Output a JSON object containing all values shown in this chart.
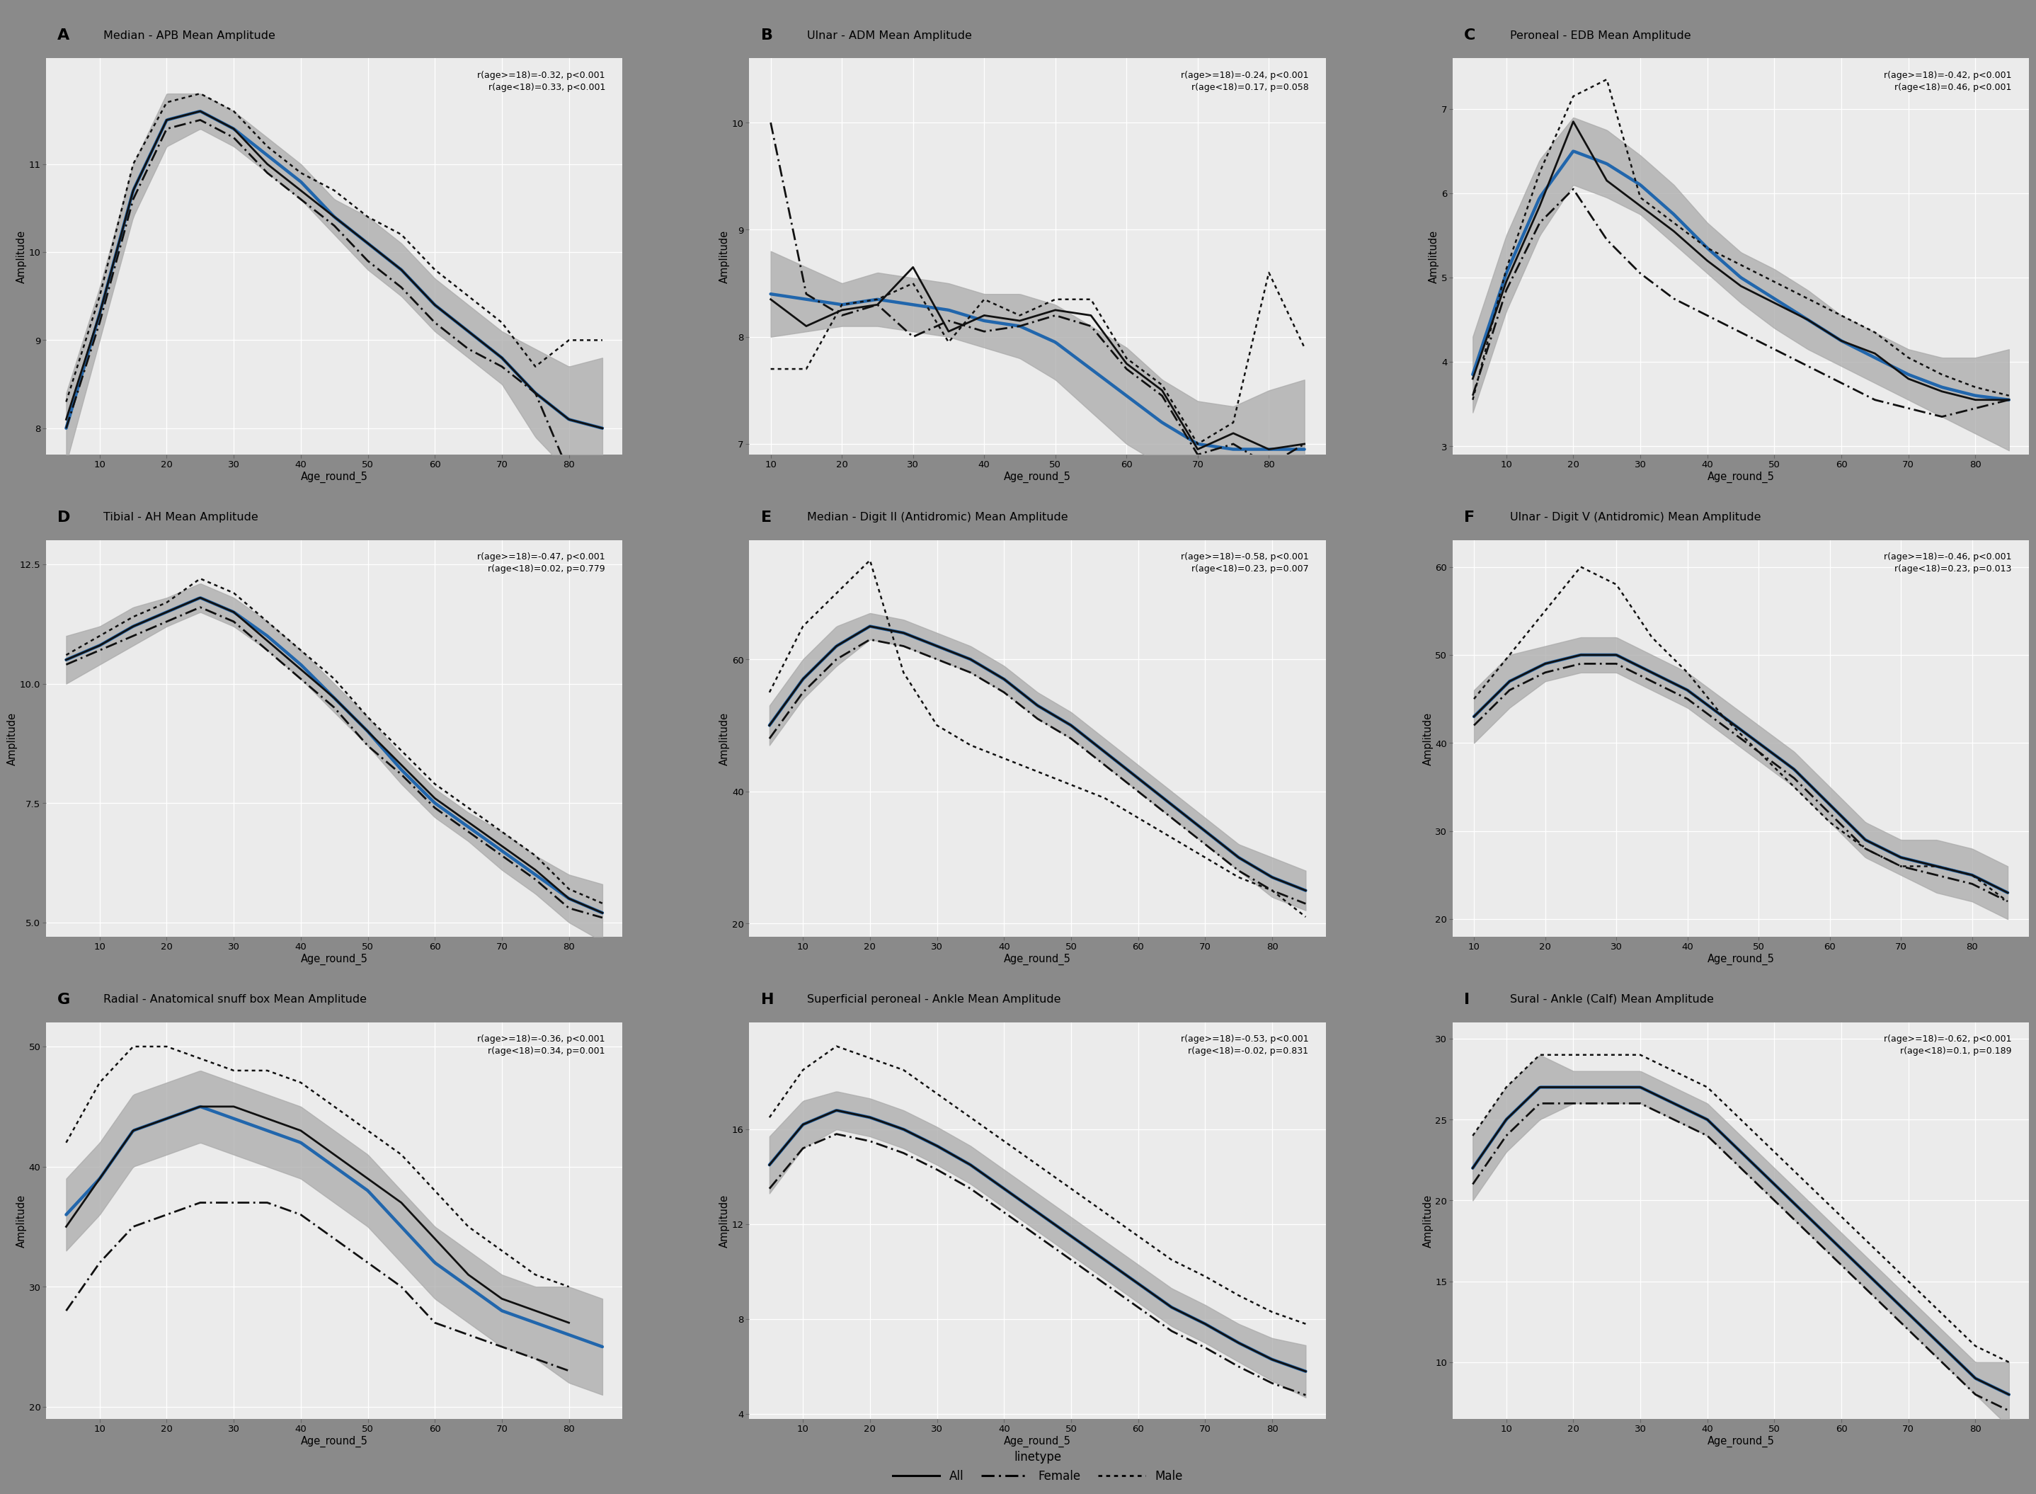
{
  "panels": [
    {
      "label": "A",
      "title": "Median - APB Mean Amplitude",
      "corr_text": "r(age>=18)=-0.32, p<0.001\nr(age<18)=0.33, p<0.001",
      "ages": [
        5,
        10,
        15,
        20,
        25,
        30,
        35,
        40,
        45,
        50,
        55,
        60,
        65,
        70,
        75,
        80,
        85
      ],
      "all_mean": [
        8.1,
        9.3,
        10.7,
        11.5,
        11.6,
        11.4,
        11.0,
        10.7,
        10.4,
        10.1,
        9.8,
        9.4,
        9.1,
        8.8,
        8.4,
        8.1,
        8.0
      ],
      "female_mean": [
        8.0,
        9.2,
        10.6,
        11.4,
        11.5,
        11.3,
        10.9,
        10.6,
        10.3,
        9.9,
        9.6,
        9.2,
        8.9,
        8.7,
        8.4,
        7.5,
        null
      ],
      "male_mean": [
        8.3,
        9.5,
        11.0,
        11.7,
        11.8,
        11.6,
        11.2,
        10.9,
        10.7,
        10.4,
        10.2,
        9.8,
        9.5,
        9.2,
        8.7,
        9.0,
        9.0
      ],
      "loess_y": [
        8.0,
        9.3,
        10.7,
        11.5,
        11.6,
        11.4,
        11.1,
        10.8,
        10.4,
        10.1,
        9.8,
        9.4,
        9.1,
        8.8,
        8.4,
        8.1,
        8.0
      ],
      "ci_low": [
        7.6,
        9.0,
        10.4,
        11.2,
        11.4,
        11.2,
        10.9,
        10.6,
        10.2,
        9.8,
        9.5,
        9.1,
        8.8,
        8.5,
        7.9,
        7.5,
        7.2
      ],
      "ci_high": [
        8.4,
        9.6,
        11.0,
        11.8,
        11.8,
        11.6,
        11.3,
        11.0,
        10.6,
        10.4,
        10.1,
        9.7,
        9.4,
        9.1,
        8.9,
        8.7,
        8.8
      ],
      "ylim": [
        7.7,
        12.2
      ],
      "yticks": [
        8,
        9,
        10,
        11
      ],
      "ylabel": "Amplitude",
      "xstart": 5
    },
    {
      "label": "B",
      "title": "Ulnar - ADM Mean Amplitude",
      "corr_text": "r(age>=18)=-0.24, p<0.001\nr(age<18)=0.17, p=0.058",
      "ages": [
        10,
        15,
        20,
        25,
        30,
        35,
        40,
        45,
        50,
        55,
        60,
        65,
        70,
        75,
        80,
        85
      ],
      "all_mean": [
        8.35,
        8.1,
        8.25,
        8.3,
        8.65,
        8.05,
        8.2,
        8.15,
        8.25,
        8.2,
        7.75,
        7.5,
        6.95,
        7.1,
        6.95,
        7.0
      ],
      "female_mean": [
        10.0,
        8.4,
        8.2,
        8.3,
        8.0,
        8.15,
        8.05,
        8.1,
        8.2,
        8.1,
        7.7,
        7.45,
        6.9,
        7.0,
        6.8,
        7.0
      ],
      "male_mean": [
        7.7,
        7.7,
        8.3,
        8.35,
        8.5,
        7.95,
        8.35,
        8.2,
        8.35,
        8.35,
        7.8,
        7.55,
        7.0,
        7.2,
        8.6,
        7.9
      ],
      "loess_y": [
        8.4,
        8.35,
        8.3,
        8.35,
        8.3,
        8.25,
        8.15,
        8.1,
        7.95,
        7.7,
        7.45,
        7.2,
        7.0,
        6.95,
        6.95,
        6.95
      ],
      "ci_low": [
        8.0,
        8.05,
        8.1,
        8.1,
        8.05,
        8.0,
        7.9,
        7.8,
        7.6,
        7.3,
        7.0,
        6.8,
        6.6,
        6.55,
        6.4,
        6.3
      ],
      "ci_high": [
        8.8,
        8.65,
        8.5,
        8.6,
        8.55,
        8.5,
        8.4,
        8.4,
        8.3,
        8.1,
        7.9,
        7.6,
        7.4,
        7.35,
        7.5,
        7.6
      ],
      "ylim": [
        6.9,
        10.6
      ],
      "yticks": [
        7,
        8,
        9,
        10
      ],
      "ylabel": "Amplitude",
      "xstart": 10
    },
    {
      "label": "C",
      "title": "Peroneal - EDB Mean Amplitude",
      "corr_text": "r(age>=18)=-0.42, p<0.001\nr(age<18)=0.46, p<0.001",
      "ages": [
        5,
        10,
        15,
        20,
        25,
        30,
        35,
        40,
        45,
        50,
        55,
        60,
        65,
        70,
        75,
        80,
        85
      ],
      "all_mean": [
        3.8,
        4.95,
        5.85,
        6.85,
        6.15,
        5.85,
        5.55,
        5.2,
        4.9,
        4.7,
        4.5,
        4.25,
        4.1,
        3.8,
        3.65,
        3.55,
        3.55
      ],
      "female_mean": [
        3.6,
        4.85,
        5.65,
        6.05,
        5.45,
        5.05,
        4.75,
        4.55,
        4.35,
        4.15,
        3.95,
        3.75,
        3.55,
        3.45,
        3.35,
        3.45,
        3.55
      ],
      "male_mean": [
        3.55,
        5.1,
        6.25,
        7.15,
        7.35,
        5.95,
        5.65,
        5.35,
        5.15,
        4.95,
        4.75,
        4.55,
        4.35,
        4.05,
        3.85,
        3.7,
        3.6
      ],
      "loess_y": [
        3.85,
        5.05,
        5.95,
        6.5,
        6.35,
        6.1,
        5.75,
        5.35,
        5.0,
        4.75,
        4.5,
        4.25,
        4.05,
        3.85,
        3.7,
        3.6,
        3.55
      ],
      "ci_low": [
        3.4,
        4.6,
        5.5,
        6.1,
        5.95,
        5.75,
        5.4,
        5.05,
        4.7,
        4.4,
        4.15,
        3.95,
        3.75,
        3.55,
        3.35,
        3.15,
        2.95
      ],
      "ci_high": [
        4.3,
        5.5,
        6.4,
        6.9,
        6.75,
        6.45,
        6.1,
        5.65,
        5.3,
        5.1,
        4.85,
        4.55,
        4.35,
        4.15,
        4.05,
        4.05,
        4.15
      ],
      "ylim": [
        2.9,
        7.6
      ],
      "yticks": [
        3,
        4,
        5,
        6,
        7
      ],
      "ylabel": "Amplitude",
      "xstart": 5
    },
    {
      "label": "D",
      "title": "Tibial - AH Mean Amplitude",
      "corr_text": "r(age>=18)=-0.47, p<0.001\nr(age<18)=0.02, p=0.779",
      "ages": [
        5,
        10,
        15,
        20,
        25,
        30,
        35,
        40,
        45,
        50,
        55,
        60,
        65,
        70,
        75,
        80,
        85
      ],
      "all_mean": [
        10.5,
        10.8,
        11.2,
        11.5,
        11.8,
        11.5,
        10.9,
        10.3,
        9.7,
        9.0,
        8.3,
        7.6,
        7.1,
        6.6,
        6.1,
        5.5,
        5.2
      ],
      "female_mean": [
        10.4,
        10.7,
        11.0,
        11.3,
        11.6,
        11.3,
        10.7,
        10.1,
        9.5,
        8.7,
        8.1,
        7.4,
        6.9,
        6.4,
        5.9,
        5.3,
        5.1
      ],
      "male_mean": [
        10.6,
        11.0,
        11.4,
        11.7,
        12.2,
        11.9,
        11.3,
        10.7,
        10.1,
        9.3,
        8.6,
        7.9,
        7.4,
        6.9,
        6.4,
        5.7,
        5.4
      ],
      "loess_y": [
        10.5,
        10.8,
        11.2,
        11.5,
        11.8,
        11.5,
        11.0,
        10.4,
        9.7,
        9.0,
        8.2,
        7.5,
        7.0,
        6.5,
        6.0,
        5.5,
        5.2
      ],
      "ci_low": [
        10.0,
        10.4,
        10.8,
        11.2,
        11.5,
        11.2,
        10.7,
        10.1,
        9.4,
        8.7,
        7.9,
        7.2,
        6.7,
        6.1,
        5.6,
        5.0,
        4.6
      ],
      "ci_high": [
        11.0,
        11.2,
        11.6,
        11.8,
        12.1,
        11.8,
        11.3,
        10.7,
        10.0,
        9.3,
        8.5,
        7.8,
        7.3,
        6.9,
        6.4,
        6.0,
        5.8
      ],
      "ylim": [
        4.7,
        13.0
      ],
      "yticks": [
        5.0,
        7.5,
        10.0,
        12.5
      ],
      "ylabel": "Amplitude",
      "xstart": 5
    },
    {
      "label": "E",
      "title": "Median - Digit II (Antidromic) Mean Amplitude",
      "corr_text": "r(age>=18)=-0.58, p<0.001\nr(age<18)=0.23, p=0.007",
      "ages": [
        5,
        10,
        15,
        20,
        25,
        30,
        35,
        40,
        45,
        50,
        55,
        60,
        65,
        70,
        75,
        80,
        85
      ],
      "all_mean": [
        50,
        57,
        62,
        65,
        64,
        62,
        60,
        57,
        53,
        50,
        46,
        42,
        38,
        34,
        30,
        27,
        25
      ],
      "female_mean": [
        48,
        55,
        60,
        63,
        62,
        60,
        58,
        55,
        51,
        48,
        44,
        40,
        36,
        32,
        28,
        25,
        23
      ],
      "male_mean": [
        55,
        65,
        70,
        75,
        58,
        50,
        47,
        45,
        43,
        41,
        39,
        36,
        33,
        30,
        27,
        25,
        21
      ],
      "loess_y": [
        50,
        57,
        62,
        65,
        64,
        62,
        60,
        57,
        53,
        50,
        46,
        42,
        38,
        34,
        30,
        27,
        25
      ],
      "ci_low": [
        47,
        54,
        59,
        63,
        62,
        60,
        58,
        55,
        51,
        48,
        44,
        40,
        36,
        32,
        28,
        24,
        22
      ],
      "ci_high": [
        53,
        60,
        65,
        67,
        66,
        64,
        62,
        59,
        55,
        52,
        48,
        44,
        40,
        36,
        32,
        30,
        28
      ],
      "ylim": [
        18,
        78
      ],
      "yticks": [
        20,
        40,
        60
      ],
      "ylabel": "Amplitude",
      "xstart": 5
    },
    {
      "label": "F",
      "title": "Ulnar - Digit V (Antidromic) Mean Amplitude",
      "corr_text": "r(age>=18)=-0.46, p<0.001\nr(age<18)=0.23, p=0.013",
      "ages": [
        10,
        15,
        20,
        25,
        30,
        35,
        40,
        45,
        50,
        55,
        60,
        65,
        70,
        75,
        80,
        85
      ],
      "all_mean": [
        43,
        47,
        49,
        50,
        50,
        48,
        46,
        43,
        40,
        37,
        33,
        29,
        27,
        26,
        25,
        23
      ],
      "female_mean": [
        42,
        46,
        48,
        49,
        49,
        47,
        45,
        42,
        39,
        36,
        32,
        28,
        26,
        25,
        24,
        22
      ],
      "male_mean": [
        45,
        50,
        55,
        60,
        58,
        52,
        48,
        43,
        39,
        35,
        31,
        28,
        26,
        26,
        25,
        22
      ],
      "loess_y": [
        43,
        47,
        49,
        50,
        50,
        48,
        46,
        43,
        40,
        37,
        33,
        29,
        27,
        26,
        25,
        23
      ],
      "ci_low": [
        40,
        44,
        47,
        48,
        48,
        46,
        44,
        41,
        38,
        35,
        31,
        27,
        25,
        23,
        22,
        20
      ],
      "ci_high": [
        46,
        50,
        51,
        52,
        52,
        50,
        48,
        45,
        42,
        39,
        35,
        31,
        29,
        29,
        28,
        26
      ],
      "ylim": [
        18,
        63
      ],
      "yticks": [
        20,
        30,
        40,
        50,
        60
      ],
      "ylabel": "Amplitude",
      "xstart": 10
    },
    {
      "label": "G",
      "title": "Radial - Anatomical snuff box Mean Amplitude",
      "corr_text": "r(age>=18)=-0.36, p<0.001\nr(age<18)=0.34, p=0.001",
      "ages": [
        5,
        10,
        15,
        20,
        25,
        30,
        35,
        40,
        45,
        50,
        55,
        60,
        65,
        70,
        75,
        80,
        85
      ],
      "all_mean": [
        35,
        39,
        43,
        44,
        45,
        45,
        44,
        43,
        41,
        39,
        37,
        34,
        31,
        29,
        28,
        27,
        null
      ],
      "female_mean": [
        28,
        32,
        35,
        36,
        37,
        37,
        37,
        36,
        34,
        32,
        30,
        27,
        26,
        25,
        24,
        23,
        null
      ],
      "male_mean": [
        42,
        47,
        50,
        50,
        49,
        48,
        48,
        47,
        45,
        43,
        41,
        38,
        35,
        33,
        31,
        30,
        null
      ],
      "loess_y": [
        36,
        39,
        43,
        44,
        45,
        44,
        43,
        42,
        40,
        38,
        35,
        32,
        30,
        28,
        27,
        26,
        25
      ],
      "ci_low": [
        33,
        36,
        40,
        41,
        42,
        41,
        40,
        39,
        37,
        35,
        32,
        29,
        27,
        25,
        24,
        22,
        21
      ],
      "ci_high": [
        39,
        42,
        46,
        47,
        48,
        47,
        46,
        45,
        43,
        41,
        38,
        35,
        33,
        31,
        30,
        30,
        29
      ],
      "ylim": [
        19,
        52
      ],
      "yticks": [
        20,
        30,
        40,
        50
      ],
      "ylabel": "Amplitude",
      "xstart": 5
    },
    {
      "label": "H",
      "title": "Superficial peroneal - Ankle Mean Amplitude",
      "corr_text": "r(age>=18)=-0.53, p<0.001\nr(age<18)=-0.02, p=0.831",
      "ages": [
        5,
        10,
        15,
        20,
        25,
        30,
        35,
        40,
        45,
        50,
        55,
        60,
        65,
        70,
        75,
        80,
        85
      ],
      "all_mean": [
        14.5,
        16.2,
        16.8,
        16.5,
        16.0,
        15.3,
        14.5,
        13.5,
        12.5,
        11.5,
        10.5,
        9.5,
        8.5,
        7.8,
        7.0,
        6.3,
        5.8
      ],
      "female_mean": [
        13.5,
        15.2,
        15.8,
        15.5,
        15.0,
        14.3,
        13.5,
        12.5,
        11.5,
        10.5,
        9.5,
        8.5,
        7.5,
        6.8,
        6.0,
        5.3,
        4.8
      ],
      "male_mean": [
        16.5,
        18.5,
        19.5,
        19.0,
        18.5,
        17.5,
        16.5,
        15.5,
        14.5,
        13.5,
        12.5,
        11.5,
        10.5,
        9.8,
        9.0,
        8.3,
        7.8
      ],
      "loess_y": [
        14.5,
        16.2,
        16.8,
        16.5,
        16.0,
        15.3,
        14.5,
        13.5,
        12.5,
        11.5,
        10.5,
        9.5,
        8.5,
        7.8,
        7.0,
        6.3,
        5.8
      ],
      "ci_low": [
        13.3,
        15.2,
        16.0,
        15.7,
        15.2,
        14.5,
        13.7,
        12.7,
        11.7,
        10.7,
        9.7,
        8.7,
        7.7,
        7.0,
        6.2,
        5.4,
        4.7
      ],
      "ci_high": [
        15.7,
        17.2,
        17.6,
        17.3,
        16.8,
        16.1,
        15.3,
        14.3,
        13.3,
        12.3,
        11.3,
        10.3,
        9.3,
        8.6,
        7.8,
        7.2,
        6.9
      ],
      "ylim": [
        3.8,
        20.5
      ],
      "yticks": [
        4,
        8,
        12,
        16
      ],
      "ylabel": "Amplitude",
      "xstart": 5
    },
    {
      "label": "I",
      "title": "Sural - Ankle (Calf) Mean Amplitude",
      "corr_text": "r(age>=18)=-0.62, p<0.001\nr(age<18)=0.1, p=0.189",
      "ages": [
        5,
        10,
        15,
        20,
        25,
        30,
        35,
        40,
        45,
        50,
        55,
        60,
        65,
        70,
        75,
        80,
        85
      ],
      "all_mean": [
        22,
        25,
        27,
        27,
        27,
        27,
        26,
        25,
        23,
        21,
        19,
        17,
        15,
        13,
        11,
        9,
        8
      ],
      "female_mean": [
        21,
        24,
        26,
        26,
        26,
        26,
        25,
        24,
        22,
        20,
        18,
        16,
        14,
        12,
        10,
        8,
        7
      ],
      "male_mean": [
        24,
        27,
        29,
        29,
        29,
        29,
        28,
        27,
        25,
        23,
        21,
        19,
        17,
        15,
        13,
        11,
        10
      ],
      "loess_y": [
        22,
        25,
        27,
        27,
        27,
        27,
        26,
        25,
        23,
        21,
        19,
        17,
        15,
        13,
        11,
        9,
        8
      ],
      "ci_low": [
        20,
        23,
        25,
        26,
        26,
        26,
        25,
        24,
        22,
        20,
        18,
        16,
        14,
        12,
        10,
        8,
        6
      ],
      "ci_high": [
        24,
        27,
        29,
        28,
        28,
        28,
        27,
        26,
        24,
        22,
        20,
        18,
        16,
        14,
        12,
        10,
        10
      ],
      "ylim": [
        6.5,
        31
      ],
      "yticks": [
        10,
        15,
        20,
        25,
        30
      ],
      "ylabel": "Amplitude",
      "xstart": 5
    }
  ],
  "outer_bg": "#8a8a8a",
  "plot_bg": "#ebebeb",
  "panel_header_bg": "#8a8a8a",
  "blue_color": "#2166ac",
  "ci_color": "#aaaaaa",
  "line_color": "#111111",
  "xlabel": "Age_round_5",
  "xticks": [
    10,
    20,
    30,
    40,
    50,
    60,
    70,
    80
  ],
  "legend_title": "linetype"
}
